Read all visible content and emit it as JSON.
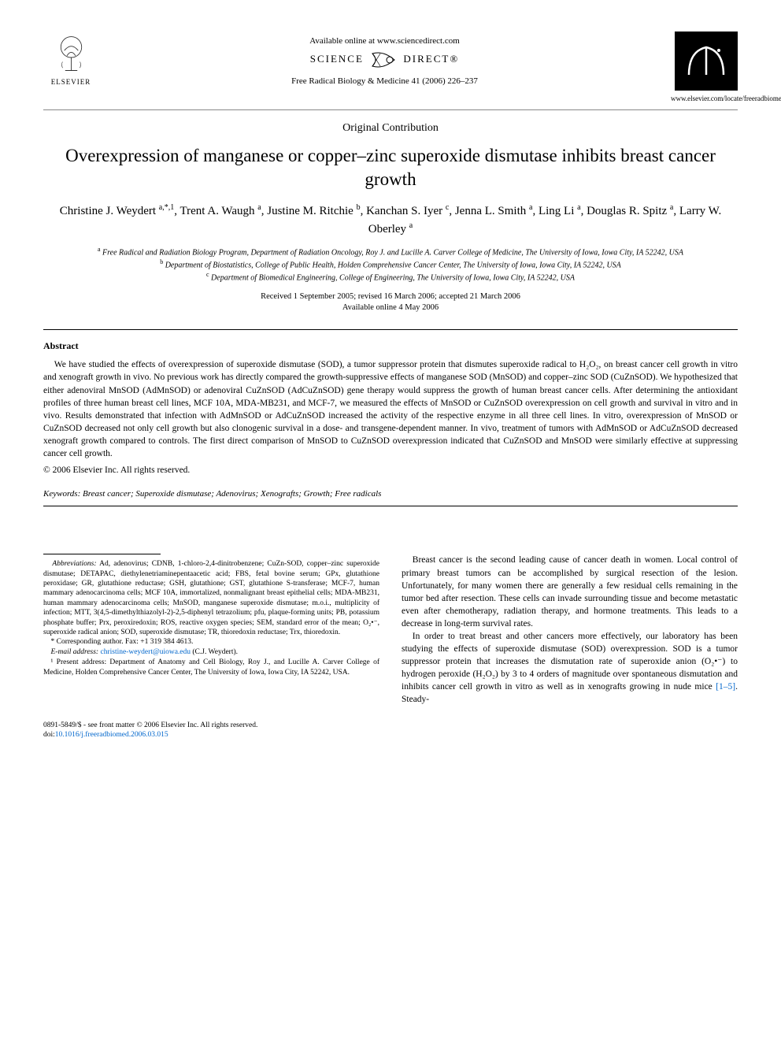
{
  "header": {
    "available_online": "Available online at www.sciencedirect.com",
    "science_direct": "SCIENCE",
    "science_direct2": "DIRECT®",
    "journal_ref": "Free Radical Biology & Medicine 41 (2006) 226–237",
    "publisher": "ELSEVIER",
    "journal_url": "www.elsevier.com/locate/freeradbiomed"
  },
  "article": {
    "type": "Original Contribution",
    "title": "Overexpression of manganese or copper–zinc superoxide dismutase inhibits breast cancer growth",
    "authors_html": "Christine J. Weydert <sup>a,*,1</sup>, Trent A. Waugh <sup>a</sup>, Justine M. Ritchie <sup>b</sup>, Kanchan S. Iyer <sup>c</sup>, Jenna L. Smith <sup>a</sup>, Ling Li <sup>a</sup>, Douglas R. Spitz <sup>a</sup>, Larry W. Oberley <sup>a</sup>",
    "affiliations": [
      {
        "sup": "a",
        "text": "Free Radical and Radiation Biology Program, Department of Radiation Oncology, Roy J. and Lucille A. Carver College of Medicine, The University of Iowa, Iowa City, IA 52242, USA"
      },
      {
        "sup": "b",
        "text": "Department of Biostatistics, College of Public Health, Holden Comprehensive Cancer Center, The University of Iowa, Iowa City, IA 52242, USA"
      },
      {
        "sup": "c",
        "text": "Department of Biomedical Engineering, College of Engineering, The University of Iowa, Iowa City, IA 52242, USA"
      }
    ],
    "received": "Received 1 September 2005; revised 16 March 2006; accepted 21 March 2006",
    "available": "Available online 4 May 2006"
  },
  "abstract": {
    "heading": "Abstract",
    "text": "We have studied the effects of overexpression of superoxide dismutase (SOD), a tumor suppressor protein that dismutes superoxide radical to H₂O₂, on breast cancer cell growth in vitro and xenograft growth in vivo. No previous work has directly compared the growth-suppressive effects of manganese SOD (MnSOD) and copper–zinc SOD (CuZnSOD). We hypothesized that either adenoviral MnSOD (AdMnSOD) or adenoviral CuZnSOD (AdCuZnSOD) gene therapy would suppress the growth of human breast cancer cells. After determining the antioxidant profiles of three human breast cell lines, MCF 10A, MDA-MB231, and MCF-7, we measured the effects of MnSOD or CuZnSOD overexpression on cell growth and survival in vitro and in vivo. Results demonstrated that infection with AdMnSOD or AdCuZnSOD increased the activity of the respective enzyme in all three cell lines. In vitro, overexpression of MnSOD or CuZnSOD decreased not only cell growth but also clonogenic survival in a dose- and transgene-dependent manner. In vivo, treatment of tumors with AdMnSOD or AdCuZnSOD decreased xenograft growth compared to controls. The first direct comparison of MnSOD to CuZnSOD overexpression indicated that CuZnSOD and MnSOD were similarly effective at suppressing cancer cell growth.",
    "copyright": "© 2006 Elsevier Inc. All rights reserved."
  },
  "keywords": {
    "label": "Keywords:",
    "text": "Breast cancer; Superoxide dismutase; Adenovirus; Xenografts; Growth; Free radicals"
  },
  "abbreviations": {
    "label": "Abbreviations:",
    "text": "Ad, adenovirus; CDNB, 1-chloro-2,4-dinitrobenzene; CuZn-SOD, copper–zinc superoxide dismutase; DETAPAC, diethylenetriaminepentaacetic acid; FBS, fetal bovine serum; GPx, glutathione peroxidase; GR, glutathione reductase; GSH, glutathione; GST, glutathione S-transferase; MCF-7, human mammary adenocarcinoma cells; MCF 10A, immortalized, nonmalignant breast epithelial cells; MDA-MB231, human mammary adenocarcinoma cells; MnSOD, manganese superoxide dismutase; m.o.i., multiplicity of infection; MTT, 3(4,5-dimethylthiazolyl-2)-2,5-diphenyl tetrazolium; pfu, plaque-forming units; PB, potassium phosphate buffer; Prx, peroxiredoxin; ROS, reactive oxygen species; SEM, standard error of the mean; O₂•⁻, superoxide radical anion; SOD, superoxide dismutase; TR, thioredoxin reductase; Trx, thioredoxin."
  },
  "footnotes": {
    "corresponding": "* Corresponding author. Fax: +1 319 384 4613.",
    "email_label": "E-mail address:",
    "email": "christine-weydert@uiowa.edu",
    "email_tail": " (C.J. Weydert).",
    "present": "¹ Present address: Department of Anatomy and Cell Biology, Roy J., and Lucille A. Carver College of Medicine, Holden Comprehensive Cancer Center, The University of Iowa, Iowa City, IA 52242, USA."
  },
  "body": {
    "p1": "Breast cancer is the second leading cause of cancer death in women. Local control of primary breast tumors can be accomplished by surgical resection of the lesion. Unfortunately, for many women there are generally a few residual cells remaining in the tumor bed after resection. These cells can invade surrounding tissue and become metastatic even after chemotherapy, radiation therapy, and hormone treatments. This leads to a decrease in long-term survival rates.",
    "p2_a": "In order to treat breast and other cancers more effectively, our laboratory has been studying the effects of superoxide dismutase (SOD) overexpression. SOD is a tumor suppressor protein that increases the dismutation rate of superoxide anion (O₂•⁻) to hydrogen peroxide (H₂O₂) by 3 to 4 orders of magnitude over spontaneous dismutation and inhibits cancer cell growth in vitro as well as in xenografts growing in nude mice ",
    "p2_ref": "[1–5]",
    "p2_b": ". Steady-"
  },
  "bottom": {
    "line1": "0891-5849/$ - see front matter © 2006 Elsevier Inc. All rights reserved.",
    "doi_label": "doi:",
    "doi": "10.1016/j.freeradbiomed.2006.03.015"
  },
  "colors": {
    "link": "#0066cc",
    "text": "#000000",
    "rule_light": "#888888"
  }
}
